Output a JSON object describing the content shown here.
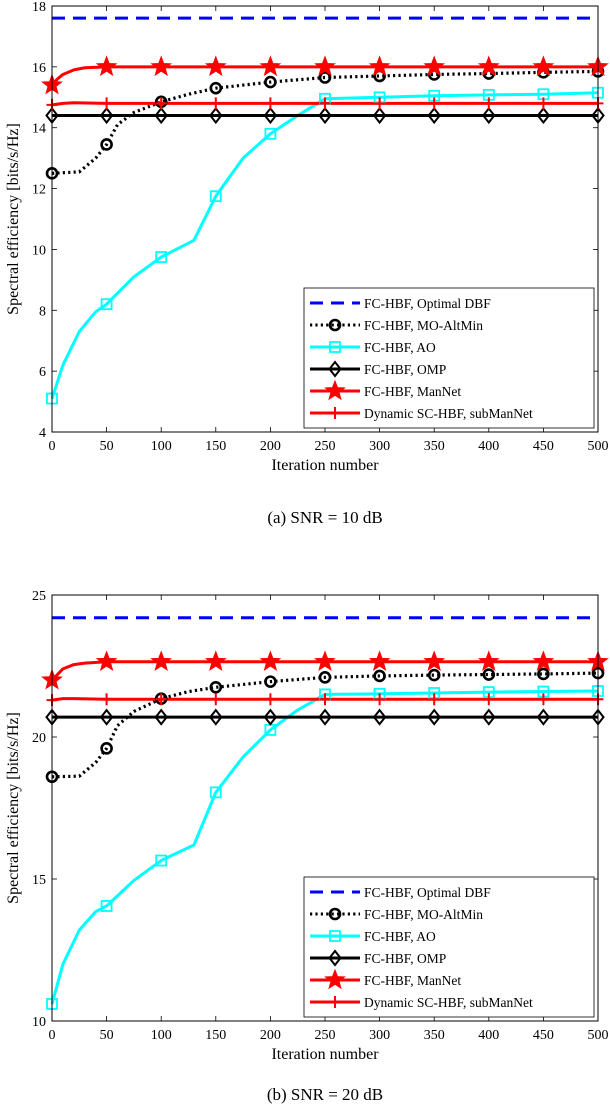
{
  "chart_data": [
    {
      "type": "line",
      "caption": "(a) SNR = 10 dB",
      "xlabel": "Iteration number",
      "ylabel": "Spectral efficiency [bits/s/Hz]",
      "xlim": [
        0,
        500
      ],
      "ylim": [
        4,
        18
      ],
      "xticks": [
        0,
        50,
        100,
        150,
        200,
        250,
        300,
        350,
        400,
        450,
        500
      ],
      "yticks": [
        4,
        6,
        8,
        10,
        12,
        14,
        16,
        18
      ],
      "legend_position": "bottom-right",
      "series": [
        {
          "name": "FC-HBF, Optimal DBF",
          "color": "#0000ff",
          "style": "dashed",
          "marker": "none",
          "x": [
            0,
            500
          ],
          "y": [
            17.6,
            17.6
          ]
        },
        {
          "name": "FC-HBF, MO-AltMin",
          "color": "#000000",
          "style": "dotted",
          "marker": "circle",
          "x": [
            0,
            25,
            40,
            50,
            60,
            75,
            100,
            125,
            150,
            200,
            250,
            300,
            350,
            400,
            450,
            500
          ],
          "y": [
            12.5,
            12.55,
            13.0,
            13.45,
            14.1,
            14.5,
            14.85,
            15.1,
            15.3,
            15.5,
            15.65,
            15.7,
            15.75,
            15.78,
            15.82,
            15.85
          ],
          "marker_x": [
            0,
            50,
            100,
            150,
            200,
            250,
            300,
            350,
            400,
            450,
            500
          ]
        },
        {
          "name": "FC-HBF, AO",
          "color": "#00ffff",
          "style": "solid",
          "marker": "square",
          "x": [
            0,
            10,
            25,
            40,
            50,
            75,
            100,
            130,
            150,
            175,
            200,
            225,
            250,
            300,
            350,
            400,
            450,
            500
          ],
          "y": [
            5.1,
            6.2,
            7.3,
            7.95,
            8.2,
            9.1,
            9.75,
            10.3,
            11.75,
            13.0,
            13.8,
            14.4,
            14.95,
            15.0,
            15.05,
            15.08,
            15.1,
            15.15
          ],
          "marker_x": [
            0,
            50,
            100,
            150,
            200,
            250,
            300,
            350,
            400,
            450,
            500
          ]
        },
        {
          "name": "FC-HBF, OMP",
          "color": "#000000",
          "style": "solid",
          "marker": "diamond",
          "x": [
            0,
            500
          ],
          "y": [
            14.4,
            14.4
          ],
          "marker_x": [
            0,
            50,
            100,
            150,
            200,
            250,
            300,
            350,
            400,
            450,
            500
          ]
        },
        {
          "name": "FC-HBF, ManNet",
          "color": "#ff0000",
          "style": "solid",
          "marker": "star",
          "x": [
            0,
            5,
            10,
            20,
            30,
            50,
            75,
            100,
            500
          ],
          "y": [
            15.4,
            15.6,
            15.75,
            15.9,
            15.97,
            16.0,
            16.0,
            16.0,
            16.0
          ],
          "marker_x": [
            0,
            50,
            100,
            150,
            200,
            250,
            300,
            350,
            400,
            450,
            500
          ]
        },
        {
          "name": "Dynamic SC-HBF, subManNet",
          "color": "#ff0000",
          "style": "solid",
          "marker": "plus",
          "x": [
            0,
            10,
            20,
            50,
            100,
            500
          ],
          "y": [
            14.75,
            14.8,
            14.82,
            14.8,
            14.8,
            14.8
          ],
          "marker_x": [
            0,
            50,
            100,
            150,
            200,
            250,
            300,
            350,
            400,
            450,
            500
          ]
        }
      ]
    },
    {
      "type": "line",
      "caption": "(b) SNR = 20 dB",
      "xlabel": "Iteration number",
      "ylabel": "Spectral efficiency [bits/s/Hz]",
      "xlim": [
        0,
        500
      ],
      "ylim": [
        10,
        25
      ],
      "xticks": [
        0,
        50,
        100,
        150,
        200,
        250,
        300,
        350,
        400,
        450,
        500
      ],
      "yticks": [
        10,
        15,
        20,
        25
      ],
      "legend_position": "bottom-right",
      "series": [
        {
          "name": "FC-HBF, Optimal DBF",
          "color": "#0000ff",
          "style": "dashed",
          "marker": "none",
          "x": [
            0,
            500
          ],
          "y": [
            24.2,
            24.2
          ]
        },
        {
          "name": "FC-HBF, MO-AltMin",
          "color": "#000000",
          "style": "dotted",
          "marker": "circle",
          "x": [
            0,
            25,
            40,
            50,
            60,
            75,
            100,
            125,
            150,
            200,
            250,
            300,
            350,
            400,
            450,
            500
          ],
          "y": [
            18.6,
            18.62,
            19.1,
            19.6,
            20.4,
            20.9,
            21.35,
            21.6,
            21.75,
            21.95,
            22.1,
            22.15,
            22.18,
            22.2,
            22.22,
            22.25
          ],
          "marker_x": [
            0,
            50,
            100,
            150,
            200,
            250,
            300,
            350,
            400,
            450,
            500
          ]
        },
        {
          "name": "FC-HBF, AO",
          "color": "#00ffff",
          "style": "solid",
          "marker": "square",
          "x": [
            0,
            10,
            25,
            40,
            50,
            75,
            100,
            130,
            150,
            175,
            200,
            225,
            250,
            300,
            350,
            400,
            450,
            500
          ],
          "y": [
            10.6,
            12.0,
            13.2,
            13.85,
            14.05,
            14.95,
            15.65,
            16.2,
            18.05,
            19.3,
            20.25,
            20.95,
            21.5,
            21.52,
            21.55,
            21.58,
            21.6,
            21.62
          ],
          "marker_x": [
            0,
            50,
            100,
            150,
            200,
            250,
            300,
            350,
            400,
            450,
            500
          ]
        },
        {
          "name": "FC-HBF, OMP",
          "color": "#000000",
          "style": "solid",
          "marker": "diamond",
          "x": [
            0,
            500
          ],
          "y": [
            20.7,
            20.7
          ],
          "marker_x": [
            0,
            50,
            100,
            150,
            200,
            250,
            300,
            350,
            400,
            450,
            500
          ]
        },
        {
          "name": "FC-HBF, ManNet",
          "color": "#ff0000",
          "style": "solid",
          "marker": "star",
          "x": [
            0,
            5,
            10,
            20,
            30,
            50,
            75,
            100,
            500
          ],
          "y": [
            22.0,
            22.2,
            22.4,
            22.55,
            22.6,
            22.65,
            22.65,
            22.65,
            22.65
          ],
          "marker_x": [
            0,
            50,
            100,
            150,
            200,
            250,
            300,
            350,
            400,
            450,
            500
          ]
        },
        {
          "name": "Dynamic SC-HBF, subManNet",
          "color": "#ff0000",
          "style": "solid",
          "marker": "plus",
          "x": [
            0,
            10,
            20,
            50,
            100,
            500
          ],
          "y": [
            21.3,
            21.35,
            21.35,
            21.33,
            21.33,
            21.33
          ],
          "marker_x": [
            0,
            50,
            100,
            150,
            200,
            250,
            300,
            350,
            400,
            450,
            500
          ]
        }
      ]
    }
  ]
}
